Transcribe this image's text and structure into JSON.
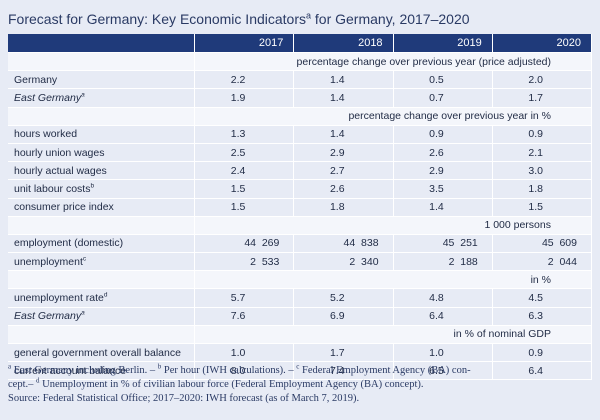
{
  "title": {
    "text_before": "Forecast for Germany: Key Economic Indicators",
    "sup": "a",
    "text_after": " for Germany, 2017–2020"
  },
  "table": {
    "years": [
      "2017",
      "2018",
      "2019",
      "2020"
    ],
    "sections": [
      {
        "header": "percentage change over previous year (price adjusted)",
        "rows": [
          {
            "label": "Germany",
            "sup": "",
            "italic": false,
            "values": [
              "2.2",
              "1.4",
              "0.5",
              "2.0"
            ]
          },
          {
            "label": "East Germany",
            "sup": "a",
            "italic": true,
            "values": [
              "1.9",
              "1.4",
              "0.7",
              "1.7"
            ]
          }
        ]
      },
      {
        "header": "percentage change over previous year in %",
        "rows": [
          {
            "label": "hours worked",
            "sup": "",
            "italic": false,
            "values": [
              "1.3",
              "1.4",
              "0.9",
              "0.9"
            ]
          },
          {
            "label": "hourly union wages",
            "sup": "",
            "italic": false,
            "values": [
              "2.5",
              "2.9",
              "2.6",
              "2.1"
            ]
          },
          {
            "label": "hourly actual wages",
            "sup": "",
            "italic": false,
            "values": [
              "2.4",
              "2.7",
              "2.9",
              "3.0"
            ]
          },
          {
            "label": "unit labour costs",
            "sup": "b",
            "italic": false,
            "values": [
              "1.5",
              "2.6",
              "3.5",
              "1.8"
            ]
          },
          {
            "label": "consumer price index",
            "sup": "",
            "italic": false,
            "values": [
              "1.5",
              "1.8",
              "1.4",
              "1.5"
            ]
          }
        ]
      },
      {
        "header": "1 000 persons",
        "rows": [
          {
            "label": "employment (domestic)",
            "sup": "",
            "italic": false,
            "wide": true,
            "values": [
              "44  269",
              "44  838",
              "45  251",
              "45  609"
            ]
          },
          {
            "label": "unemployment",
            "sup": "c",
            "italic": false,
            "wide": true,
            "values": [
              "2  533",
              "2  340",
              "2  188",
              "2  044"
            ]
          }
        ]
      },
      {
        "header": "in %",
        "rows": [
          {
            "label": "unemployment rate",
            "sup": "d",
            "italic": false,
            "values": [
              "5.7",
              "5.2",
              "4.8",
              "4.5"
            ]
          },
          {
            "label": "East Germany",
            "sup": "a",
            "italic": true,
            "values": [
              "7.6",
              "6.9",
              "6.4",
              "6.3"
            ]
          }
        ]
      },
      {
        "header": "in % of nominal GDP",
        "rows": [
          {
            "label": "general government overall balance",
            "sup": "",
            "italic": false,
            "values": [
              "1.0",
              "1.7",
              "1.0",
              "0.9"
            ]
          },
          {
            "label": "current account balance",
            "sup": "",
            "italic": false,
            "values": [
              "8.0",
              "7.4",
              "6.5",
              "6.4"
            ]
          }
        ]
      }
    ]
  },
  "footnotes": {
    "line1_sup_a": "a",
    "line1_a": " East Germany including Berlin. – ",
    "line1_sup_b": "b",
    "line1_b": " Per hour (IWH calculations). – ",
    "line1_sup_c": "c",
    "line1_c": " Federal Employment Agency (BA) con-",
    "line2_prefix": "cept.– ",
    "line2_sup_d": "d",
    "line2_d": " Unemployment in % of civilian labour force (Federal Employment Agency (BA) concept).",
    "line3": "Source: Federal Statistical Office; 2017–2020: IWH forecast (as of March 7, 2019)."
  }
}
